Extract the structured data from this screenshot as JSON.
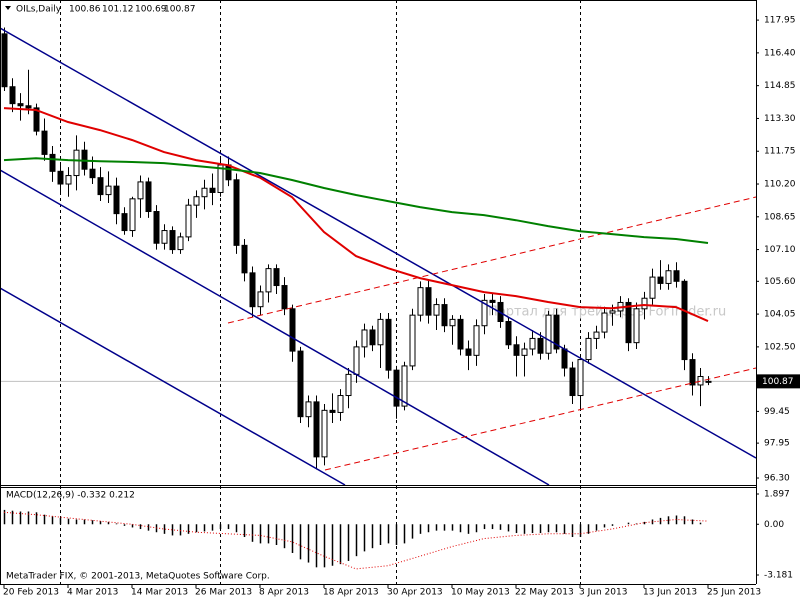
{
  "chart_data": {
    "type": "candlestick",
    "title": "OILs,Daily",
    "open": [
      117.3,
      114.8,
      114,
      113.9,
      113.8,
      112.7,
      111.6,
      110.8,
      110.2,
      110.6,
      111.8,
      110.9,
      110.5,
      109.7,
      110.1,
      108.8,
      108,
      109.5,
      110.3,
      108.9,
      107.4,
      108,
      107.1,
      107.7,
      109.2,
      109.6,
      110,
      109.8,
      111.1,
      110.4,
      107.3,
      106,
      104.4,
      105.1,
      106.2,
      105.4,
      104.3,
      102.3,
      99.2,
      99.9,
      97.3,
      99.5,
      99.4,
      100.2,
      101.2,
      102.5,
      103.3,
      102.6,
      103.8,
      101.4,
      99.7,
      101.6,
      104,
      105.3,
      104,
      104.5,
      103.5,
      103.8,
      102.4,
      102.1,
      103.5,
      104.7,
      104.6,
      103.7,
      102.6,
      102.1,
      102.4,
      102.9,
      102.2,
      104,
      102.4,
      101.5,
      100.2,
      101.9,
      102.9,
      103.2,
      104.1,
      104.2,
      104.6,
      102.7,
      104.3,
      104.8,
      105.8,
      105.5,
      106.1,
      105.6,
      101.9,
      100.7,
      100.86
    ],
    "high": [
      117.6,
      115.2,
      114.5,
      115.6,
      114,
      113.3,
      112,
      111.2,
      111,
      112.5,
      112.2,
      111.5,
      111,
      110.8,
      110.5,
      109.1,
      109.6,
      110.6,
      110.5,
      109.2,
      108.3,
      108.2,
      107.9,
      109.5,
      109.9,
      110.4,
      110.7,
      111.4,
      111.5,
      110.7,
      107.6,
      106.3,
      105.4,
      106.4,
      106.4,
      105.8,
      104.5,
      102.5,
      100.2,
      100.2,
      99.8,
      100.3,
      100.5,
      101.5,
      102.8,
      103.6,
      103.5,
      104.1,
      104.1,
      101.6,
      101.8,
      104.3,
      105.6,
      105.7,
      104.8,
      104.8,
      104,
      104,
      102.8,
      103.8,
      105,
      105,
      104.9,
      103.9,
      103,
      102.7,
      103.3,
      103.2,
      104.2,
      104.3,
      102.6,
      101.8,
      102.1,
      103.2,
      103.5,
      104.4,
      104.5,
      104.9,
      104.8,
      104.6,
      105.1,
      106.2,
      106.6,
      106.4,
      106.5,
      105.7,
      102.2,
      101.5,
      101.12
    ],
    "low": [
      114.6,
      113.6,
      113.2,
      113.5,
      112.5,
      111.3,
      110.3,
      109.7,
      109.6,
      109.9,
      110.6,
      110.2,
      109.4,
      109.3,
      108.3,
      107.8,
      107.7,
      108.6,
      108.6,
      107.1,
      107.1,
      106.9,
      106.9,
      107.5,
      108.6,
      109,
      109.2,
      109.6,
      110.1,
      106.9,
      105.6,
      103.9,
      104,
      104.6,
      105,
      104,
      101.8,
      98.9,
      98.7,
      96.7,
      96.9,
      98.9,
      99,
      99.6,
      100.8,
      102,
      102.3,
      101.5,
      101,
      99.1,
      99.5,
      101.4,
      103.7,
      103.6,
      103.3,
      103.2,
      102.6,
      102.1,
      101.4,
      101.6,
      103.1,
      104,
      103.4,
      102.4,
      101.1,
      101.1,
      102.1,
      101.9,
      101.9,
      102.2,
      101.1,
      99.8,
      99.6,
      101.7,
      102.4,
      102.9,
      103.5,
      103.9,
      102.3,
      102.4,
      103.8,
      104.5,
      105.2,
      105.2,
      105.3,
      101.4,
      100.2,
      99.7,
      100.69
    ],
    "close": [
      114.8,
      114,
      113.9,
      113.8,
      112.7,
      111.6,
      110.8,
      110.2,
      110.6,
      111.8,
      110.9,
      110.5,
      109.7,
      110.1,
      108.8,
      108,
      109.5,
      110.3,
      108.9,
      107.4,
      108,
      107.1,
      107.7,
      109.2,
      109.6,
      110,
      109.8,
      111.1,
      110.4,
      107.3,
      106,
      104.4,
      105.1,
      106.2,
      105.4,
      104.3,
      102.3,
      99.2,
      99.9,
      97.3,
      99.5,
      99.4,
      100.2,
      101.2,
      102.5,
      103.3,
      102.6,
      103.8,
      101.4,
      99.7,
      101.6,
      104,
      105.3,
      104,
      104.5,
      103.5,
      103.8,
      102.4,
      102.1,
      103.5,
      104.7,
      104.6,
      103.7,
      102.6,
      102.1,
      102.4,
      102.9,
      102.2,
      104,
      102.4,
      101.5,
      100.2,
      101.9,
      102.9,
      103.2,
      104.1,
      104.2,
      104.6,
      102.7,
      104.3,
      104.8,
      105.8,
      105.5,
      106.1,
      105.6,
      101.9,
      100.7,
      101.1,
      100.87
    ],
    "xlim": [
      -0.5,
      94
    ],
    "ylim": [
      95.97,
      118.9
    ],
    "yticks": [
      117.95,
      {
        "value": 116.4,
        "label": "116.40"
      },
      114.85,
      {
        "value": 113.3,
        "label": "113.30"
      },
      111.75,
      {
        "value": 110.2,
        "label": "110.20"
      },
      108.65,
      {
        "value": 107.1,
        "label": "107.10"
      },
      {
        "value": 105.6,
        "label": "105.60"
      },
      104.05,
      {
        "value": 102.5,
        "label": "102.50"
      },
      99.45,
      97.95,
      {
        "value": 96.3,
        "label": "96.30"
      }
    ],
    "xticks": [
      {
        "value": 0,
        "label": "20 Feb 2013"
      },
      {
        "value": 8,
        "label": "4 Mar 2013"
      },
      {
        "value": 16,
        "label": "14 Mar 2013"
      },
      {
        "value": 24,
        "label": "26 Mar 2013"
      },
      {
        "value": 32,
        "label": "8 Apr 2013"
      },
      {
        "value": 40,
        "label": "18 Apr 2013"
      },
      {
        "value": 48,
        "label": "30 Apr 2013"
      },
      {
        "value": 56,
        "label": "10 May 2013"
      },
      {
        "value": 64,
        "label": "22 May 2013"
      },
      {
        "value": 72,
        "label": "3 Jun 2013"
      },
      {
        "value": 80,
        "label": "13 Jun 2013"
      },
      {
        "value": 88,
        "label": "25 Jun 2013"
      }
    ],
    "bull_color": "#ffffff",
    "bear_color": "#000000",
    "moving_averages": [
      {
        "color": "#e00000",
        "x": [
          0,
          4,
          8,
          12,
          16,
          20,
          24,
          28,
          32,
          36,
          40,
          44,
          48,
          52,
          56,
          60,
          64,
          68,
          72,
          76,
          80,
          84,
          88
        ],
        "values": [
          113.79,
          113.7,
          113.13,
          112.75,
          112.28,
          111.71,
          111.33,
          111.09,
          110.5,
          109.58,
          107.93,
          106.79,
          106.22,
          105.75,
          105.42,
          105.09,
          104.9,
          104.62,
          104.38,
          104.33,
          104.48,
          104.38,
          103.72
        ]
      },
      {
        "color": "#008000",
        "x": [
          0,
          4,
          8,
          12,
          16,
          20,
          24,
          28,
          32,
          36,
          40,
          44,
          48,
          52,
          56,
          60,
          64,
          68,
          72,
          76,
          80,
          84,
          88
        ],
        "values": [
          111.33,
          111.42,
          111.33,
          111.28,
          111.24,
          111.19,
          111.05,
          110.91,
          110.72,
          110.39,
          110.01,
          109.68,
          109.39,
          109.11,
          108.87,
          108.73,
          108.49,
          108.21,
          107.97,
          107.83,
          107.69,
          107.6,
          107.41
        ]
      }
    ],
    "watermark": "Портал для трейдеров ForTrader.ru",
    "copyright": "MetaTrader FIX, © 2001-2013, MetaQuotes Software Corp.",
    "macd": {
      "title": "MACD(12,26,9) -0.332 0.212",
      "ylim": [
        -3.745,
        2.336
      ],
      "yticks": [
        1.897,
        {
          "value": 0,
          "label": "0.00"
        },
        -3.181
      ],
      "histogram": [
        0.9,
        0.85,
        0.8,
        0.8,
        0.75,
        0.6,
        0.5,
        0.4,
        0.35,
        0.3,
        0.3,
        0.25,
        0.2,
        0.15,
        0.05,
        -0.1,
        -0.2,
        -0.3,
        -0.4,
        -0.5,
        -0.6,
        -0.7,
        -0.7,
        -0.6,
        -0.5,
        -0.45,
        -0.4,
        -0.3,
        -0.3,
        -0.5,
        -0.8,
        -1.1,
        -1.2,
        -1.2,
        -1.3,
        -1.5,
        -1.8,
        -2.2,
        -2.4,
        -2.7,
        -2.7,
        -2.6,
        -2.5,
        -2.3,
        -2,
        -1.7,
        -1.5,
        -1.3,
        -1.2,
        -1.3,
        -1.2,
        -0.9,
        -0.6,
        -0.5,
        -0.4,
        -0.4,
        -0.4,
        -0.5,
        -0.6,
        -0.5,
        -0.3,
        -0.3,
        -0.35,
        -0.45,
        -0.55,
        -0.6,
        -0.55,
        -0.55,
        -0.5,
        -0.5,
        -0.6,
        -0.8,
        -0.8,
        -0.6,
        -0.4,
        -0.2,
        -0.1,
        0,
        0.1,
        0.05,
        0.15,
        0.3,
        0.4,
        0.5,
        0.55,
        0.5,
        0.3,
        0.1,
        0
      ],
      "signal": {
        "color": "#e00000",
        "x": [
          0,
          4,
          8,
          12,
          16,
          20,
          24,
          28,
          32,
          36,
          40,
          44,
          48,
          52,
          56,
          60,
          64,
          68,
          72,
          76,
          80,
          84,
          88
        ],
        "values": [
          0.75,
          0.6,
          0.4,
          0.2,
          0,
          -0.3,
          -0.5,
          -0.6,
          -0.7,
          -1.1,
          -2,
          -2.8,
          -2.6,
          -2,
          -1.4,
          -0.9,
          -0.7,
          -0.6,
          -0.6,
          -0.3,
          0.1,
          0.3,
          0.2
        ]
      }
    }
  }
}
